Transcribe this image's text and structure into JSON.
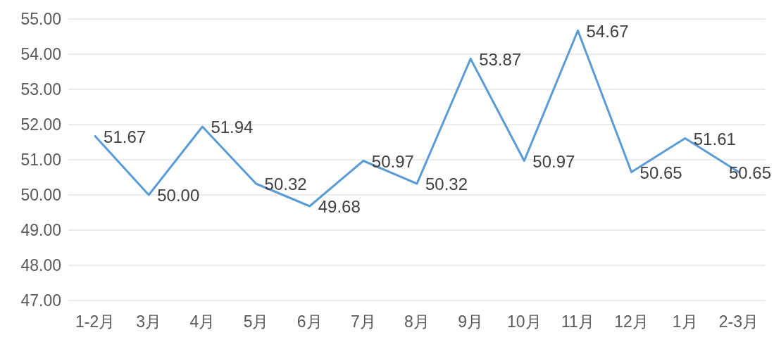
{
  "chart_data": {
    "type": "line",
    "categories": [
      "1-2月",
      "3月",
      "4月",
      "5月",
      "6月",
      "7月",
      "8月",
      "9月",
      "10月",
      "11月",
      "12月",
      "1月",
      "2-3月"
    ],
    "values": [
      51.67,
      50.0,
      51.94,
      50.32,
      49.68,
      50.97,
      50.32,
      53.87,
      50.97,
      54.67,
      50.65,
      51.61,
      50.65
    ],
    "value_labels": [
      "51.67",
      "50.00",
      "51.94",
      "50.32",
      "49.68",
      "50.97",
      "50.32",
      "53.87",
      "50.97",
      "54.67",
      "50.65",
      "51.61",
      "50.65"
    ],
    "color": "#5b9bd5",
    "ylim": [
      47,
      55
    ],
    "yticks": [
      {
        "value": 47,
        "label": "47.00"
      },
      {
        "value": 48,
        "label": "48.00"
      },
      {
        "value": 49,
        "label": "49.00"
      },
      {
        "value": 50,
        "label": "50.00"
      },
      {
        "value": 51,
        "label": "51.00"
      },
      {
        "value": 52,
        "label": "52.00"
      },
      {
        "value": 53,
        "label": "53.00"
      },
      {
        "value": 54,
        "label": "54.00"
      },
      {
        "value": 55,
        "label": "55.00"
      }
    ],
    "grid": "y"
  }
}
